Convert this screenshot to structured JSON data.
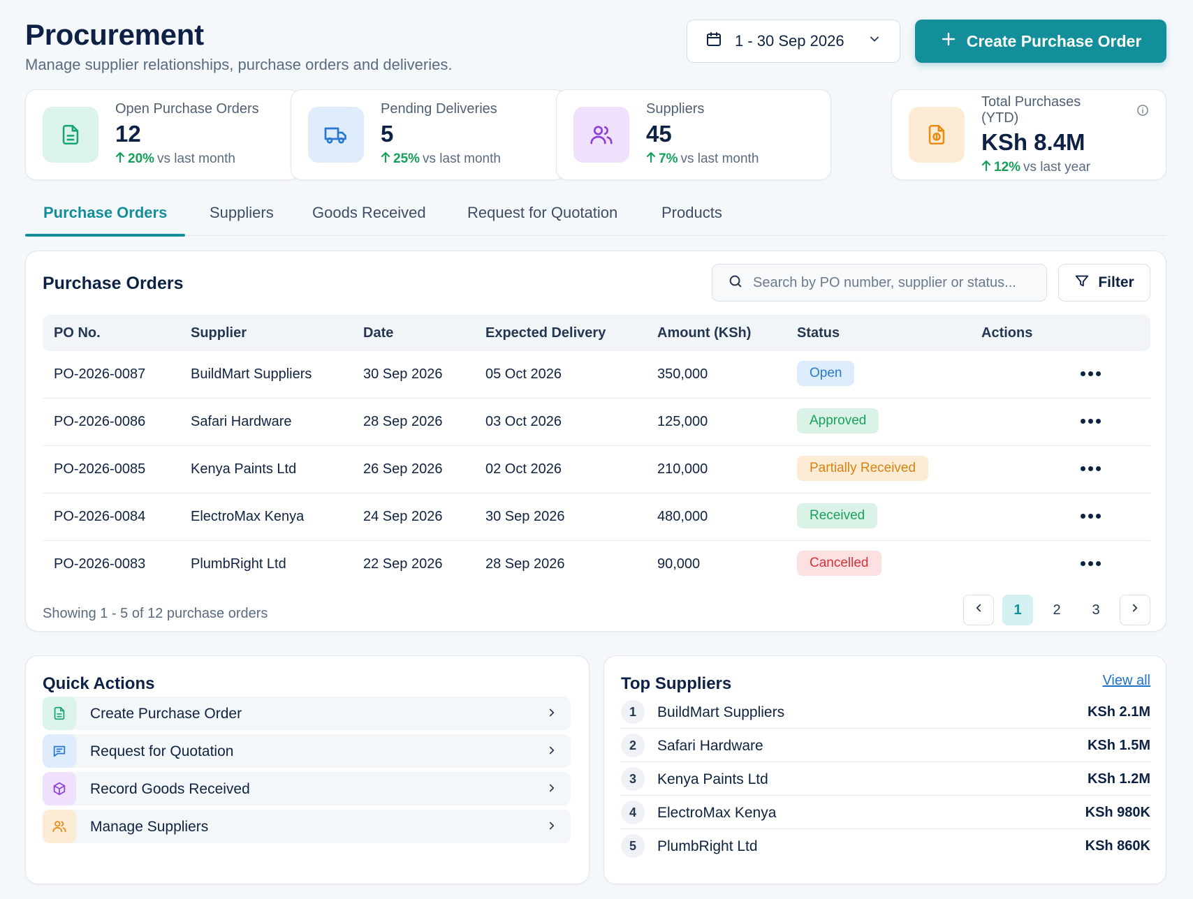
{
  "header": {
    "title": "Procurement",
    "subtitle": "Manage supplier relationships, purchase orders and deliveries.",
    "date_range": "1 - 30 Sep 2026",
    "create_label": "Create Purchase Order"
  },
  "kpis": [
    {
      "label": "Open Purchase Orders",
      "value": "12",
      "trend_pct": "20%",
      "trend_text": "vs last month",
      "icon": "document-icon",
      "color": "#1aa37a"
    },
    {
      "label": "Pending Deliveries",
      "value": "5",
      "trend_pct": "25%",
      "trend_text": "vs last month",
      "icon": "truck-icon",
      "color": "#2a78d2"
    },
    {
      "label": "Suppliers",
      "value": "45",
      "trend_pct": "7%",
      "trend_text": "vs last month",
      "icon": "users-icon",
      "color": "#8e3fd6"
    },
    {
      "label": "Total Purchases (YTD)",
      "value": "KSh 8.4M",
      "trend_pct": "12%",
      "trend_text": "vs last year",
      "icon": "money-document-icon",
      "color": "#e98a12"
    }
  ],
  "tabs": [
    "Purchase Orders",
    "Suppliers",
    "Goods Received",
    "Request for Quotation",
    "Products"
  ],
  "orders": {
    "title": "Purchase Orders",
    "search_placeholder": "Search by PO number, supplier or status...",
    "filter_label": "Filter",
    "columns": [
      "PO No.",
      "Supplier",
      "Date",
      "Expected Delivery",
      "Amount (KSh)",
      "Status",
      "Actions"
    ],
    "rows": [
      {
        "po": "PO-2026-0087",
        "supplier": "BuildMart Suppliers",
        "date": "30 Sep 2026",
        "expected": "05 Oct 2026",
        "amount": "350,000",
        "status": "Open"
      },
      {
        "po": "PO-2026-0086",
        "supplier": "Safari Hardware",
        "date": "28 Sep 2026",
        "expected": "03 Oct 2026",
        "amount": "125,000",
        "status": "Approved"
      },
      {
        "po": "PO-2026-0085",
        "supplier": "Kenya Paints Ltd",
        "date": "26 Sep 2026",
        "expected": "02 Oct 2026",
        "amount": "210,000",
        "status": "Partially Received"
      },
      {
        "po": "PO-2026-0084",
        "supplier": "ElectroMax Kenya",
        "date": "24 Sep 2026",
        "expected": "30 Sep 2026",
        "amount": "480,000",
        "status": "Received"
      },
      {
        "po": "PO-2026-0083",
        "supplier": "PlumbRight Ltd",
        "date": "22 Sep 2026",
        "expected": "28 Sep 2026",
        "amount": "90,000",
        "status": "Cancelled"
      }
    ],
    "showing": "Showing 1 - 5 of 12 purchase orders",
    "pages": [
      "1",
      "2",
      "3"
    ],
    "current_page": "1"
  },
  "quick_actions": {
    "title": "Quick Actions",
    "items": [
      {
        "label": "Create Purchase Order",
        "icon": "document-icon"
      },
      {
        "label": "Request for Quotation",
        "icon": "chat-icon"
      },
      {
        "label": "Record Goods Received",
        "icon": "box-icon"
      },
      {
        "label": "Manage Suppliers",
        "icon": "users-icon"
      }
    ]
  },
  "top_suppliers": {
    "title": "Top Suppliers",
    "view_all": "View all",
    "items": [
      {
        "rank": "1",
        "name": "BuildMart Suppliers",
        "amount": "KSh 2.1M"
      },
      {
        "rank": "2",
        "name": "Safari Hardware",
        "amount": "KSh 1.5M"
      },
      {
        "rank": "3",
        "name": "Kenya Paints Ltd",
        "amount": "KSh 1.2M"
      },
      {
        "rank": "4",
        "name": "ElectroMax Kenya",
        "amount": "KSh 980K"
      },
      {
        "rank": "5",
        "name": "PlumbRight Ltd",
        "amount": "KSh 860K"
      }
    ]
  }
}
